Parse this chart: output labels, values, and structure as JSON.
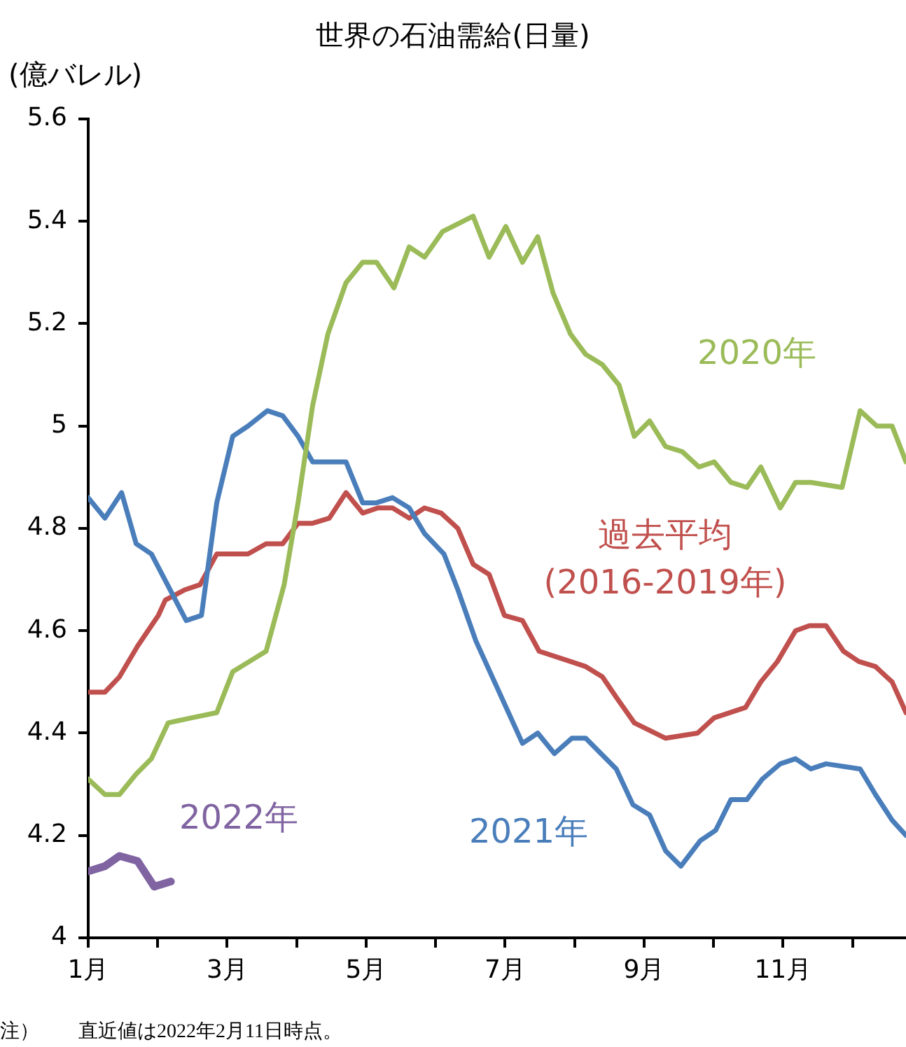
{
  "chart_data": {
    "type": "line",
    "title": "世界の石油需給(日量)",
    "ylabel": "(億バレル)",
    "annotations": [
      "注）　　直近値は2022年2月11日時点。"
    ],
    "xlim": [
      1,
      12.77
    ],
    "xticks": [
      {
        "value": 1,
        "label": "1月"
      },
      {
        "value": 2,
        "label": null
      },
      {
        "value": 3,
        "label": "3月"
      },
      {
        "value": 4,
        "label": null
      },
      {
        "value": 5,
        "label": "5月"
      },
      {
        "value": 6,
        "label": null
      },
      {
        "value": 7,
        "label": "7月"
      },
      {
        "value": 8,
        "label": null
      },
      {
        "value": 9,
        "label": "9月"
      },
      {
        "value": 10,
        "label": null
      },
      {
        "value": 11,
        "label": "11月"
      },
      {
        "value": 12,
        "label": null
      }
    ],
    "ylim": [
      4,
      5.6
    ],
    "yticks": [
      4,
      4.2,
      4.4,
      4.6,
      4.8,
      5,
      5.2,
      5.4,
      5.6
    ],
    "grid": false,
    "legend": false,
    "marker": "none",
    "line_style": "solid",
    "series": [
      {
        "name": "2020年",
        "color": "#9bbb59",
        "x": [
          1.0,
          1.24,
          1.45,
          1.69,
          1.91,
          2.15,
          2.49,
          2.85,
          3.08,
          3.32,
          3.56,
          3.7,
          3.82,
          4.02,
          4.23,
          4.45,
          4.71,
          4.95,
          5.15,
          5.4,
          5.62,
          5.84,
          6.1,
          6.54,
          6.77,
          7.01,
          7.25,
          7.47,
          7.69,
          7.94,
          8.16,
          8.4,
          8.64,
          8.86,
          9.08,
          9.31,
          9.55,
          9.79,
          10.01,
          10.25,
          10.48,
          10.68,
          10.96,
          11.18,
          11.4,
          11.85,
          12.11,
          12.35,
          12.57,
          12.77
        ],
        "values": [
          4.31,
          4.28,
          4.28,
          4.32,
          4.35,
          4.42,
          4.43,
          4.44,
          4.52,
          4.54,
          4.56,
          4.63,
          4.69,
          4.85,
          5.04,
          5.18,
          5.28,
          5.32,
          5.32,
          5.27,
          5.35,
          5.33,
          5.38,
          5.41,
          5.33,
          5.39,
          5.32,
          5.37,
          5.26,
          5.18,
          5.14,
          5.12,
          5.08,
          4.98,
          5.01,
          4.96,
          4.95,
          4.92,
          4.93,
          4.89,
          4.88,
          4.92,
          4.84,
          4.89,
          4.89,
          4.88,
          5.03,
          5.0,
          5.0,
          4.93
        ]
      },
      {
        "name": "2021年",
        "color": "#4a7ebb",
        "x": [
          1.0,
          1.24,
          1.48,
          1.69,
          1.91,
          2.41,
          2.63,
          2.85,
          3.08,
          3.3,
          3.58,
          3.8,
          4.02,
          4.23,
          4.47,
          4.71,
          4.95,
          5.15,
          5.38,
          5.62,
          5.84,
          6.12,
          6.32,
          6.58,
          7.25,
          7.47,
          7.71,
          7.96,
          8.16,
          8.6,
          8.84,
          9.08,
          9.31,
          9.53,
          9.81,
          10.03,
          10.25,
          10.48,
          10.7,
          10.96,
          11.18,
          11.4,
          11.62,
          12.11,
          12.33,
          12.57,
          12.77
        ],
        "values": [
          4.86,
          4.82,
          4.87,
          4.77,
          4.75,
          4.62,
          4.63,
          4.85,
          4.98,
          5.0,
          5.03,
          5.02,
          4.98,
          4.93,
          4.93,
          4.93,
          4.85,
          4.85,
          4.86,
          4.84,
          4.79,
          4.75,
          4.68,
          4.58,
          4.38,
          4.4,
          4.36,
          4.39,
          4.39,
          4.33,
          4.26,
          4.24,
          4.17,
          4.14,
          4.19,
          4.21,
          4.27,
          4.27,
          4.31,
          4.34,
          4.35,
          4.33,
          4.34,
          4.33,
          4.28,
          4.23,
          4.2
        ]
      },
      {
        "name": "過去平均(2016-2019年)",
        "color": "#c0504d",
        "x": [
          1.0,
          1.24,
          1.45,
          1.71,
          2.01,
          2.11,
          2.39,
          2.61,
          2.85,
          3.1,
          3.3,
          3.56,
          3.8,
          4.02,
          4.23,
          4.47,
          4.71,
          4.95,
          5.17,
          5.38,
          5.62,
          5.84,
          6.08,
          6.32,
          6.54,
          6.77,
          6.99,
          7.25,
          7.49,
          7.94,
          8.16,
          8.4,
          8.6,
          8.86,
          9.31,
          9.77,
          10.01,
          10.46,
          10.68,
          10.92,
          11.18,
          11.38,
          11.62,
          11.87,
          12.09,
          12.33,
          12.57,
          12.77
        ],
        "values": [
          4.48,
          4.48,
          4.51,
          4.57,
          4.63,
          4.66,
          4.68,
          4.69,
          4.75,
          4.75,
          4.75,
          4.77,
          4.77,
          4.81,
          4.81,
          4.82,
          4.87,
          4.83,
          4.84,
          4.84,
          4.82,
          4.84,
          4.83,
          4.8,
          4.73,
          4.71,
          4.63,
          4.62,
          4.56,
          4.54,
          4.53,
          4.51,
          4.47,
          4.42,
          4.39,
          4.4,
          4.43,
          4.45,
          4.5,
          4.54,
          4.6,
          4.61,
          4.61,
          4.56,
          4.54,
          4.53,
          4.5,
          4.44
        ]
      },
      {
        "name": "2022年",
        "color": "#8064a2",
        "x": [
          1.0,
          1.24,
          1.45,
          1.71,
          1.95,
          2.19
        ],
        "values": [
          4.13,
          4.14,
          4.16,
          4.15,
          4.1,
          4.11
        ]
      }
    ]
  }
}
